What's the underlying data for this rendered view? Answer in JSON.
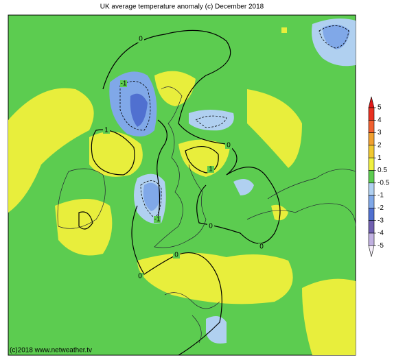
{
  "title": "UK average temperature anomaly (c) December 2018",
  "credit": "(c)2018  www.netweather.tv",
  "legend": {
    "ticks": [
      5,
      4,
      3,
      2,
      1,
      0.5,
      -0.5,
      -1,
      -2,
      -3,
      -4,
      -5
    ],
    "colors": [
      "#e01818",
      "#e83020",
      "#f06030",
      "#f0a030",
      "#f0c830",
      "#f0f040",
      "#5ccc50",
      "#b0d0f0",
      "#80a8e8",
      "#5070d0",
      "#7060b0",
      "#c0b0e0",
      "#f4eef8"
    ]
  },
  "contour_labels": [
    "0",
    "-1",
    "1",
    "0",
    "1",
    "-1",
    "0",
    "0",
    "0",
    "0"
  ]
}
